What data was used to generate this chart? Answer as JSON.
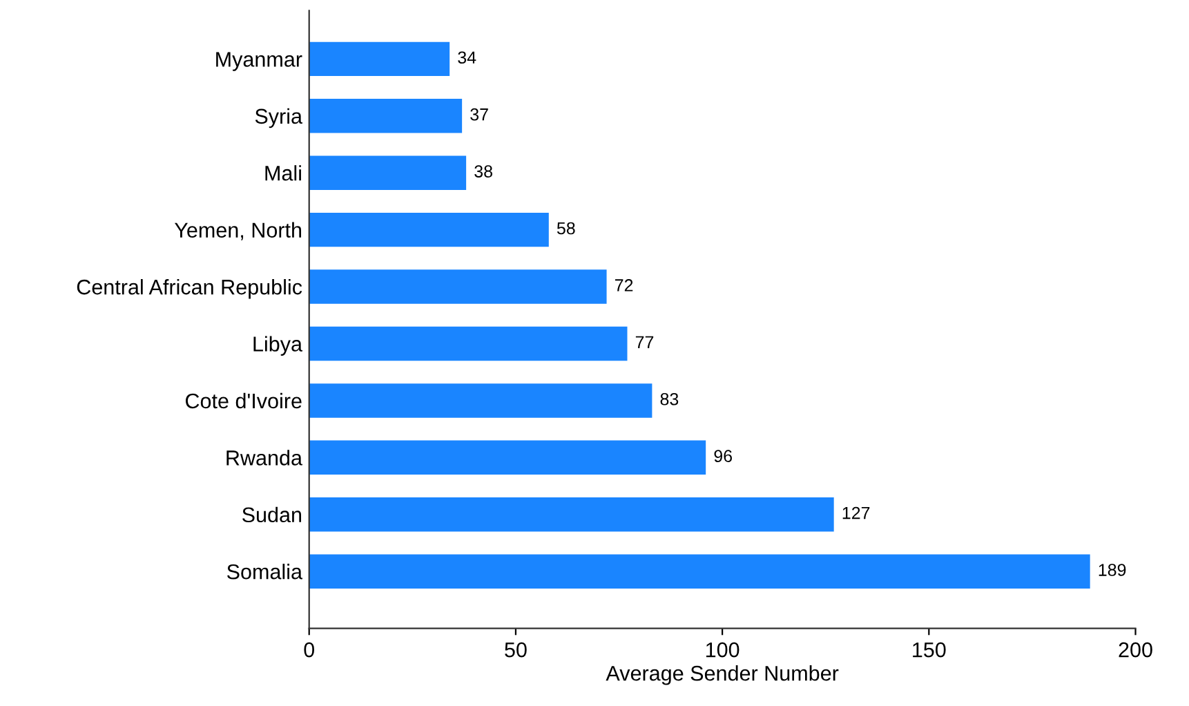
{
  "chart_data": {
    "type": "bar",
    "orientation": "horizontal",
    "xlabel": "Average Sender Number",
    "categories": [
      "Myanmar",
      "Syria",
      "Mali",
      "Yemen, North",
      "Central African Republic",
      "Libya",
      "Cote d'Ivoire",
      "Rwanda",
      "Sudan",
      "Somalia"
    ],
    "values": [
      34,
      37,
      38,
      58,
      72,
      77,
      83,
      96,
      127,
      189
    ],
    "color": "#1a85ff",
    "data_labels": true,
    "grid": false,
    "legend": false,
    "xlim": [
      0,
      200
    ],
    "xticks": [
      0,
      50,
      100,
      150,
      200
    ]
  }
}
